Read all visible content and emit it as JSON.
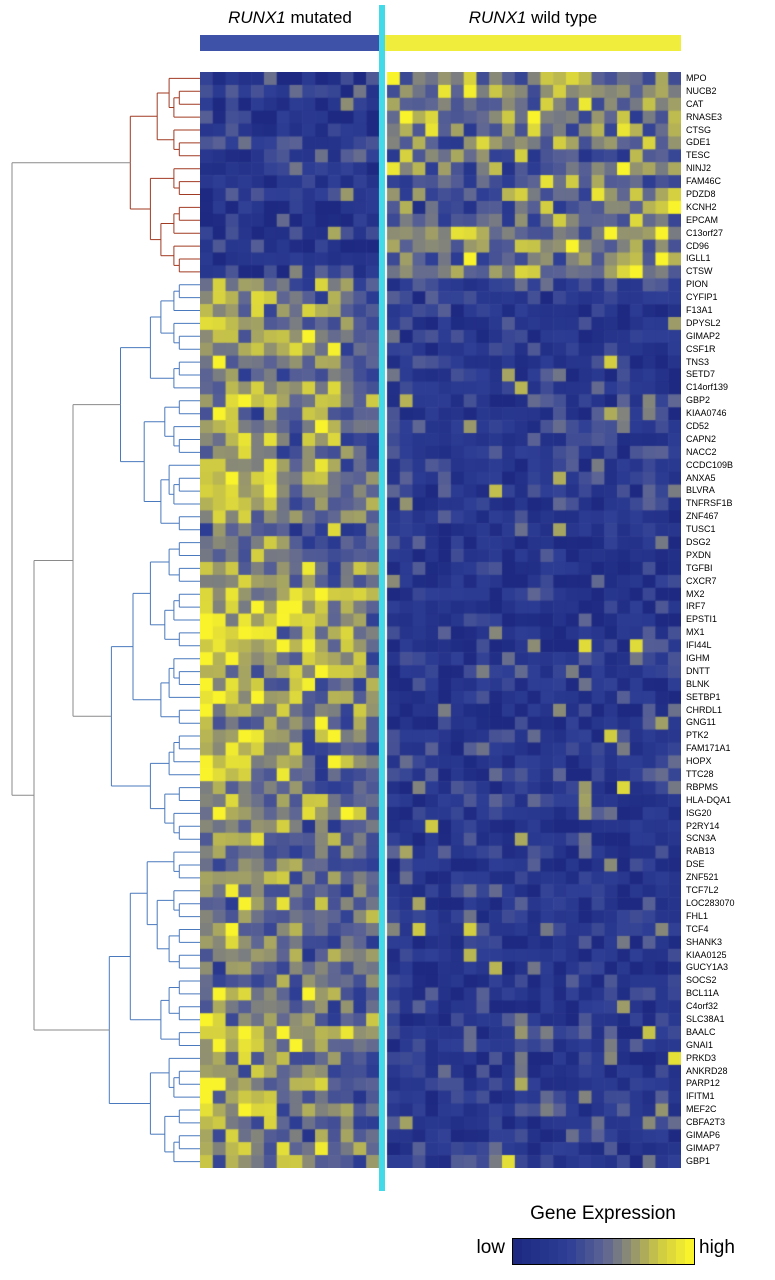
{
  "header": {
    "mutated": {
      "gene": "RUNX1",
      "suffix": " mutated",
      "bar_color": "#3e52a8"
    },
    "wild_type": {
      "gene": "RUNX1",
      "suffix": " wild type",
      "bar_color": "#f0ed3c"
    }
  },
  "divider_color": "#42d9e8",
  "legend": {
    "title": "Gene Expression",
    "low_label": "low",
    "high_label": "high"
  },
  "dendrogram_colors": [
    "#4a79bd",
    "#a03a22",
    "#8a8a8a"
  ],
  "chart_data": {
    "type": "heatmap",
    "title": "Gene Expression",
    "clustering": {
      "rows": "hierarchical-dendrogram-left",
      "columns": "grouped-by-genotype"
    },
    "legend_scale": {
      "min_label": "low",
      "max_label": "high"
    },
    "groups": [
      {
        "name": "RUNX1 mutated",
        "n_samples": 14
      },
      {
        "name": "RUNX1 wild type",
        "n_samples": 23
      }
    ],
    "genes": [
      "MPO",
      "NUCB2",
      "CAT",
      "RNASE3",
      "CTSG",
      "GDE1",
      "TESC",
      "NINJ2",
      "FAM46C",
      "PDZD8",
      "KCNH2",
      "EPCAM",
      "C13orf27",
      "CD96",
      "IGLL1",
      "CTSW",
      "PION",
      "CYFIP1",
      "F13A1",
      "DPYSL2",
      "GIMAP2",
      "CSF1R",
      "TNS3",
      "SETD7",
      "C14orf139",
      "GBP2",
      "KIAA0746",
      "CD52",
      "CAPN2",
      "NACC2",
      "CCDC109B",
      "ANXA5",
      "BLVRA",
      "TNFRSF1B",
      "ZNF467",
      "TUSC1",
      "DSG2",
      "PXDN",
      "TGFBI",
      "CXCR7",
      "MX2",
      "IRF7",
      "EPSTI1",
      "MX1",
      "IFI44L",
      "IGHM",
      "DNTT",
      "BLNK",
      "SETBP1",
      "CHRDL1",
      "GNG11",
      "PTK2",
      "FAM171A1",
      "HOPX",
      "TTC28",
      "RBPMS",
      "HLA-DQA1",
      "ISG20",
      "P2RY14",
      "SCN3A",
      "RAB13",
      "DSE",
      "ZNF521",
      "TCF7L2",
      "LOC283070",
      "FHL1",
      "TCF4",
      "SHANK3",
      "KIAA0125",
      "GUCY1A3",
      "SOCS2",
      "BCL11A",
      "C4orf32",
      "SLC38A1",
      "BAALC",
      "GNAI1",
      "PRKD3",
      "ANKRD28",
      "PARP12",
      "IFITM1",
      "MEF2C",
      "CBFA2T3",
      "GIMAP6",
      "GIMAP7",
      "GBP1"
    ],
    "row_means": {
      "mutated": [
        0.2,
        0.25,
        0.2,
        0.15,
        0.2,
        0.3,
        0.2,
        0.25,
        0.2,
        0.25,
        0.1,
        0.1,
        0.15,
        0.2,
        0.15,
        0.25,
        0.5,
        0.6,
        0.6,
        0.55,
        0.6,
        0.65,
        0.6,
        0.55,
        0.6,
        0.65,
        0.55,
        0.6,
        0.65,
        0.6,
        0.65,
        0.7,
        0.65,
        0.6,
        0.55,
        0.5,
        0.45,
        0.55,
        0.6,
        0.6,
        0.7,
        0.75,
        0.8,
        0.8,
        0.75,
        0.7,
        0.7,
        0.65,
        0.7,
        0.6,
        0.65,
        0.7,
        0.65,
        0.7,
        0.6,
        0.55,
        0.6,
        0.65,
        0.6,
        0.55,
        0.5,
        0.55,
        0.6,
        0.55,
        0.6,
        0.55,
        0.6,
        0.55,
        0.65,
        0.6,
        0.55,
        0.6,
        0.55,
        0.6,
        0.65,
        0.6,
        0.55,
        0.6,
        0.65,
        0.6,
        0.65,
        0.6,
        0.55,
        0.6,
        0.55
      ],
      "wild_type": [
        0.55,
        0.6,
        0.55,
        0.5,
        0.55,
        0.5,
        0.5,
        0.5,
        0.45,
        0.5,
        0.45,
        0.4,
        0.55,
        0.6,
        0.55,
        0.6,
        0.3,
        0.25,
        0.2,
        0.2,
        0.25,
        0.2,
        0.2,
        0.25,
        0.2,
        0.25,
        0.2,
        0.3,
        0.25,
        0.2,
        0.25,
        0.2,
        0.25,
        0.2,
        0.2,
        0.2,
        0.15,
        0.15,
        0.2,
        0.15,
        0.2,
        0.2,
        0.15,
        0.2,
        0.15,
        0.2,
        0.25,
        0.2,
        0.2,
        0.15,
        0.15,
        0.2,
        0.2,
        0.25,
        0.2,
        0.2,
        0.25,
        0.2,
        0.15,
        0.15,
        0.2,
        0.2,
        0.2,
        0.2,
        0.15,
        0.2,
        0.25,
        0.15,
        0.2,
        0.15,
        0.2,
        0.2,
        0.15,
        0.2,
        0.25,
        0.2,
        0.2,
        0.2,
        0.2,
        0.25,
        0.2,
        0.2,
        0.2,
        0.2,
        0.25
      ],
      "scale_note": "0 = low (blue), 1 = high (yellow); estimated from pixel colors"
    },
    "colormap": {
      "stops": [
        [
          0,
          "#1e2a82"
        ],
        [
          0.3,
          "#2e3e95"
        ],
        [
          0.5,
          "#5b6395"
        ],
        [
          0.65,
          "#8d8d74"
        ],
        [
          0.82,
          "#cdc944"
        ],
        [
          1,
          "#f9f32b"
        ]
      ]
    },
    "noise_sd": 0.15,
    "seed": 42
  }
}
